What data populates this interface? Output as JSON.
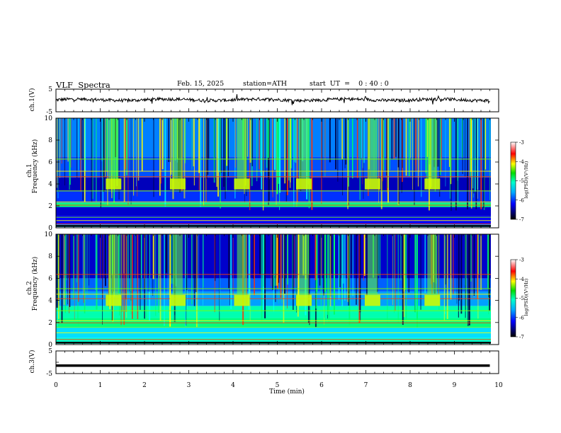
{
  "header": {
    "title": "VLF  Spectra",
    "date": "Feb. 15, 2025",
    "station": "station=ATH",
    "start": "start  UT  =    0 : 40 : 0"
  },
  "chart_data": [
    {
      "type": "line",
      "panel": "ch1-voltage",
      "ylabel": "ch.1(V)",
      "xlabel": "",
      "xlim": [
        0,
        10
      ],
      "ylim": [
        -5,
        5
      ],
      "yticks": [
        "5",
        "-5"
      ],
      "series": [
        {
          "level": 0.3,
          "noise": "fluctuating trace near zero with spikes"
        }
      ]
    },
    {
      "type": "heatmap",
      "panel": "ch1-spectrogram",
      "ylabel": "ch.1",
      "ylabel2": "Frequency  (kHz)",
      "xlim": [
        0,
        10
      ],
      "ylim": [
        0,
        10
      ],
      "yticks": [
        "0",
        "2",
        "4",
        "6",
        "8",
        "10"
      ],
      "colorbar": {
        "label": "log(PSD)(V²/Hz)",
        "range": [
          -7,
          -3
        ],
        "ticks": [
          "-3",
          "-4",
          "-5",
          "-6",
          "-7"
        ]
      },
      "bursts_min": [
        1.3,
        2.75,
        4.2,
        5.6,
        7.15,
        8.5
      ],
      "burst_band_khz": [
        3.5,
        4.5
      ]
    },
    {
      "type": "heatmap",
      "panel": "ch2-spectrogram",
      "ylabel": "ch.2",
      "ylabel2": "Frequency  (kHz)",
      "xlim": [
        0,
        10
      ],
      "ylim": [
        0,
        10
      ],
      "yticks": [
        "0",
        "2",
        "4",
        "6",
        "8",
        "10"
      ],
      "colorbar": {
        "label": "log(PSD)(V²/Hz)",
        "range": [
          -7,
          -3
        ],
        "ticks": [
          "-3",
          "-4",
          "-5",
          "-6",
          "-7"
        ]
      },
      "bursts_min": [
        1.3,
        2.75,
        4.2,
        5.6,
        7.15,
        8.5
      ],
      "burst_band_khz": [
        3.5,
        4.5
      ]
    },
    {
      "type": "line",
      "panel": "ch3-voltage",
      "ylabel": "ch.3(V)",
      "xlabel": "Time  (min)",
      "xlim": [
        0,
        10
      ],
      "ylim": [
        -5,
        5
      ],
      "yticks": [
        "5",
        "-5"
      ],
      "xticks": [
        "0",
        "1",
        "2",
        "3",
        "4",
        "5",
        "6",
        "7",
        "8",
        "9",
        "10"
      ],
      "series": [
        {
          "level": -1.5
        }
      ]
    }
  ],
  "colors": {
    "trace": "#000000",
    "axis": "#000000"
  }
}
